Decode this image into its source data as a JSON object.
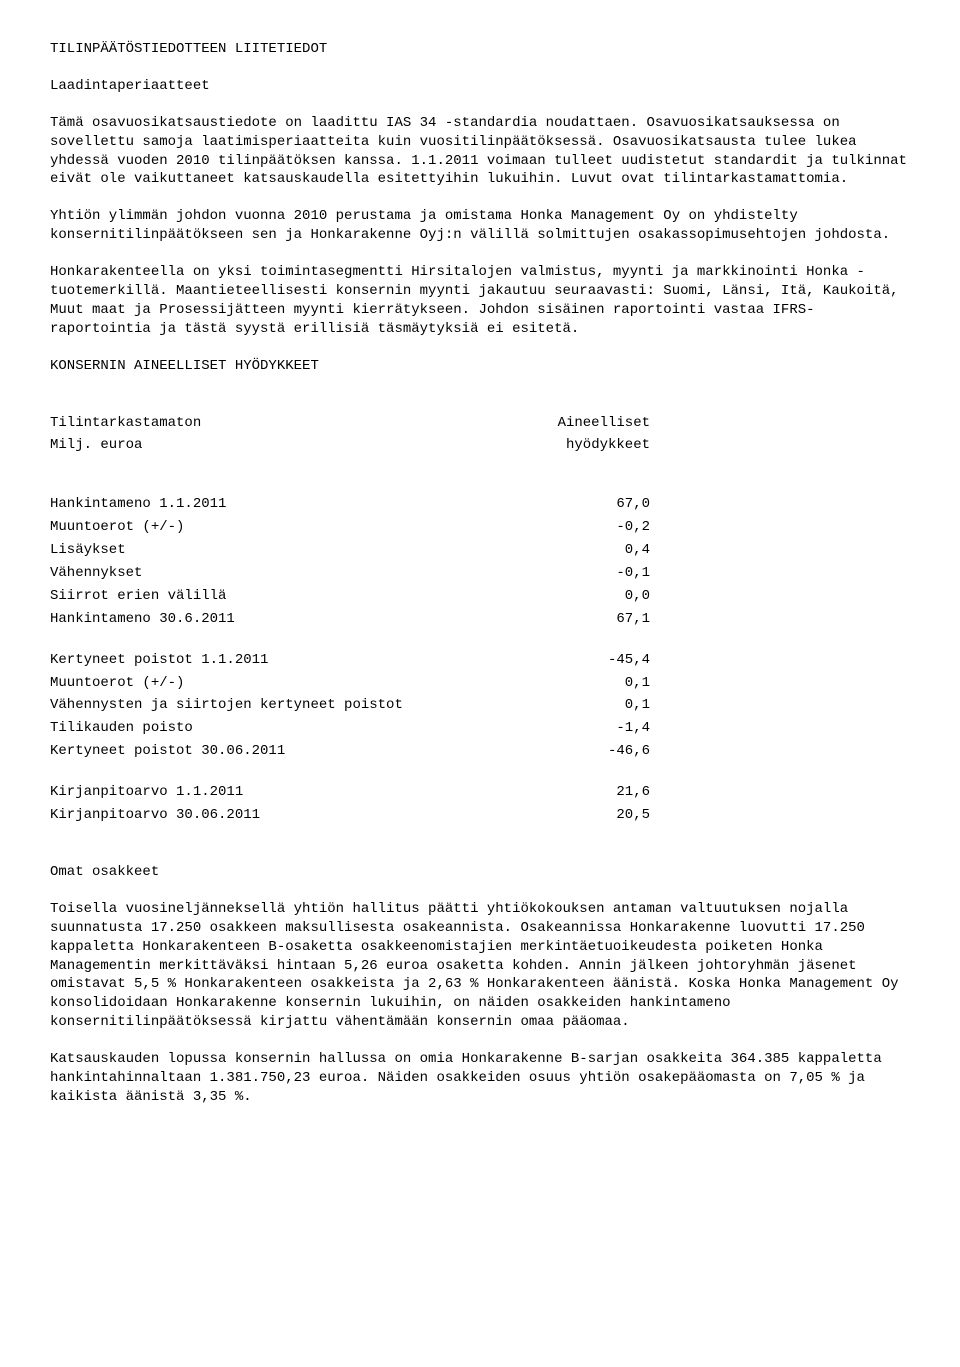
{
  "title": "TILINPÄÄTÖSTIEDOTTEEN LIITETIEDOT",
  "subhead": "Laadintaperiaatteet",
  "p1": "Tämä osavuosikatsaustiedote on laadittu IAS 34 -standardia noudattaen. Osavuosikatsauksessa on sovellettu samoja laatimisperiaatteita kuin vuositilinpäätöksessä. Osavuosikatsausta tulee lukea yhdessä vuoden 2010 tilinpäätöksen kanssa. 1.1.2011 voimaan tulleet uudistetut standardit ja tulkinnat eivät ole vaikuttaneet katsauskaudella esitettyihin lukuihin. Luvut ovat tilintarkastamattomia.",
  "p2": "Yhtiön ylimmän johdon vuonna 2010 perustama ja omistama Honka Management Oy on yhdistelty konsernitilinpäätökseen sen ja Honkarakenne Oyj:n välillä solmittujen osakassopimusehtojen johdosta.",
  "p3": "Honkarakenteella on yksi toimintasegmentti Hirsitalojen valmistus, myynti ja markkinointi Honka -tuotemerkillä. Maantieteellisesti konsernin myynti jakautuu seuraavasti: Suomi, Länsi, Itä, Kaukoitä, Muut maat ja Prosessijätteen myynti kierrätykseen. Johdon sisäinen raportointi vastaa IFRS-raportointia ja tästä syystä erillisiä täsmäytyksiä ei esitetä.",
  "assets_head": "KONSERNIN AINEELLISET HYÖDYKKEET",
  "tbl_header": {
    "left1": "Tilintarkastamaton",
    "right1": "Aineelliset",
    "left2": "Milj. euroa",
    "right2": "hyödykkeet"
  },
  "group1": [
    {
      "label": "Hankintameno 1.1.2011",
      "value": "67,0"
    },
    {
      "label": "Muuntoerot (+/-)",
      "value": "-0,2"
    },
    {
      "label": "Lisäykset",
      "value": "0,4"
    },
    {
      "label": "Vähennykset",
      "value": "-0,1"
    },
    {
      "label": "Siirrot erien välillä",
      "value": "0,0"
    },
    {
      "label": "Hankintameno 30.6.2011",
      "value": "67,1"
    }
  ],
  "group2": [
    {
      "label": "Kertyneet poistot 1.1.2011",
      "value": "-45,4"
    },
    {
      "label": "Muuntoerot (+/-)",
      "value": "0,1"
    },
    {
      "label": "Vähennysten ja siirtojen kertyneet poistot",
      "value": "0,1"
    },
    {
      "label": "Tilikauden poisto",
      "value": "-1,4"
    },
    {
      "label": "Kertyneet poistot 30.06.2011",
      "value": "-46,6"
    }
  ],
  "group3": [
    {
      "label": "Kirjanpitoarvo 1.1.2011",
      "value": "21,6"
    },
    {
      "label": "Kirjanpitoarvo 30.06.2011",
      "value": "20,5"
    }
  ],
  "own_shares_head": "Omat osakkeet",
  "p4": "Toisella vuosineljänneksellä yhtiön hallitus päätti yhtiökokouksen antaman valtuutuksen nojalla suunnatusta 17.250 osakkeen maksullisesta osakeannista. Osakeannissa Honkarakenne luovutti 17.250 kappaletta Honkarakenteen B-osaketta osakkeenomistajien merkintäetuoikeudesta poiketen Honka Managementin merkittäväksi hintaan 5,26 euroa osaketta kohden. Annin jälkeen johtoryhmän jäsenet omistavat 5,5 % Honkarakenteen osakkeista ja 2,63 % Honkarakenteen äänistä. Koska Honka Management Oy konsolidoidaan Honkarakenne konsernin lukuihin, on näiden osakkeiden hankintameno konsernitilinpäätöksessä kirjattu vähentämään konsernin omaa pääomaa.",
  "p5": "Katsauskauden lopussa konsernin hallussa on omia Honkarakenne B-sarjan osakkeita 364.385 kappaletta hankintahinnaltaan 1.381.750,23 euroa. Näiden osakkeiden osuus yhtiön osakepääomasta on 7,05 % ja kaikista äänistä 3,35 %."
}
